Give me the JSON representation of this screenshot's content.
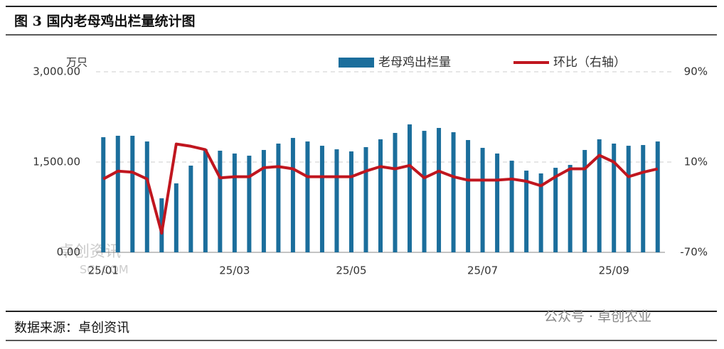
{
  "chart_data": {
    "type": "bar-line",
    "title": "图 3  国内老母鸡出栏量统计图",
    "y_label": "万只",
    "categories": [
      "25/01",
      null,
      null,
      null,
      null,
      null,
      null,
      null,
      null,
      "25/03",
      null,
      null,
      null,
      null,
      null,
      null,
      null,
      "25/05",
      null,
      null,
      null,
      null,
      null,
      null,
      null,
      null,
      "25/07",
      null,
      null,
      null,
      null,
      null,
      null,
      null,
      null,
      "25/09",
      null,
      null,
      null
    ],
    "series": [
      {
        "name": "老母鸡出栏量",
        "color": "#1b6e9c",
        "kind": "bar",
        "axis": "y",
        "values": [
          1913,
          1937,
          1937,
          1842,
          898,
          1146,
          1441,
          1712,
          1689,
          1642,
          1606,
          1701,
          1807,
          1901,
          1842,
          1771,
          1712,
          1677,
          1748,
          1878,
          1984,
          2126,
          2019,
          2067,
          1996,
          1866,
          1736,
          1642,
          1523,
          1358,
          1311,
          1405,
          1453,
          1701,
          1878,
          1807,
          1771,
          1783,
          1842
        ]
      },
      {
        "name": "环比（右轴）",
        "color": "#c0161f",
        "kind": "line",
        "axis": "y2",
        "values": [
          -5,
          2,
          1,
          -5,
          -53,
          26,
          24,
          21,
          -4,
          -3,
          -3,
          5,
          6,
          4,
          -3,
          -3,
          -3,
          -3,
          2,
          6,
          4,
          7,
          -4,
          2,
          -3,
          -6,
          -6,
          -6,
          -5,
          -7,
          -11,
          -3,
          4,
          4,
          16,
          10,
          -3,
          1,
          4
        ]
      }
    ],
    "ylim": [
      0,
      3000
    ],
    "yticks": [
      {
        "value": 0,
        "label": "0.00"
      },
      {
        "value": 1500,
        "label": "1,500.00"
      },
      {
        "value": 3000,
        "label": "3,000.00"
      }
    ],
    "y2lim": [
      -70,
      90
    ],
    "y2ticks": [
      {
        "value": -70,
        "label": "-70%"
      },
      {
        "value": 10,
        "label": "10%"
      },
      {
        "value": 90,
        "label": "90%"
      }
    ],
    "grid": true,
    "logo": "卓创资讯",
    "logo_sub": "SCI.COM",
    "source": "数据来源：卓创资讯",
    "watermark": "公众号 · 卓创农业"
  }
}
